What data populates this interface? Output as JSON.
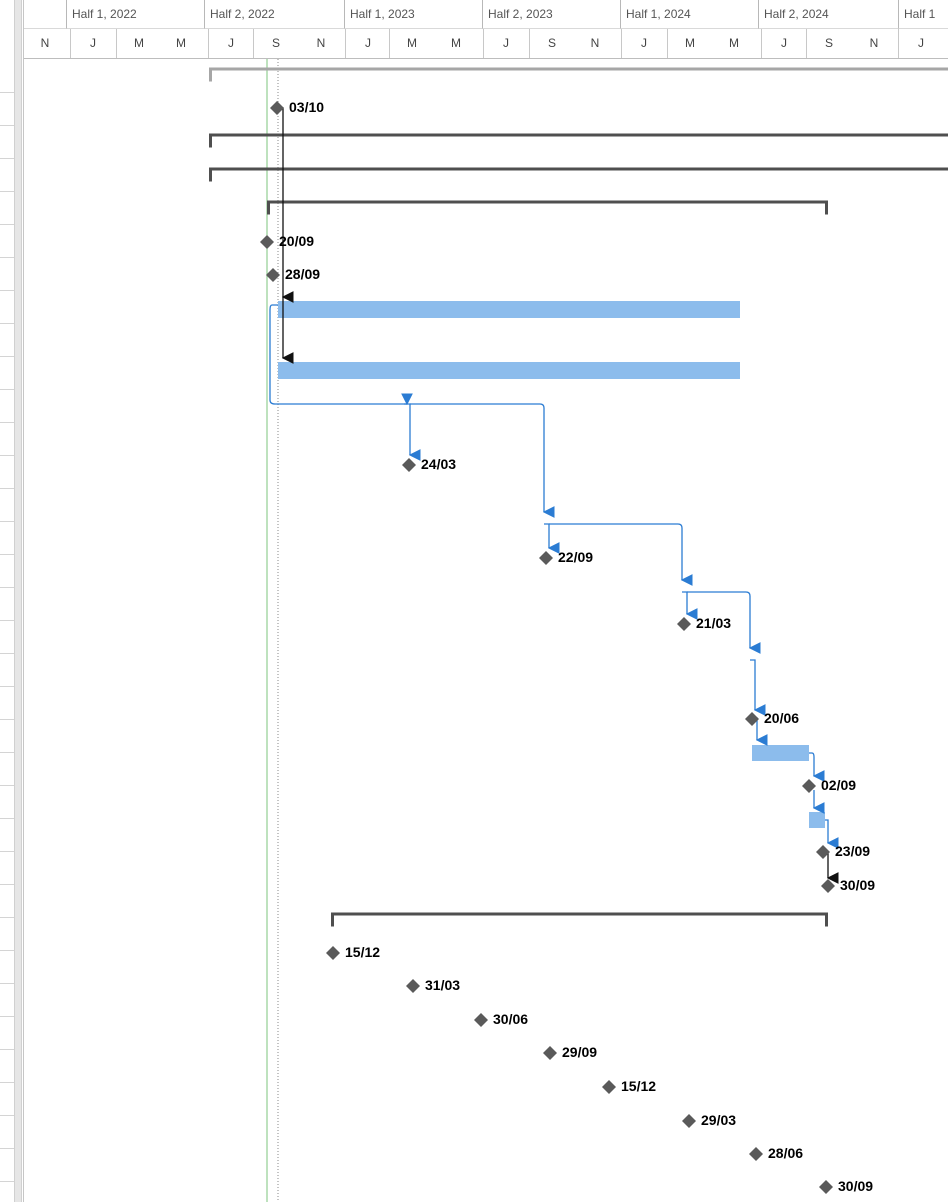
{
  "colors": {
    "task_bar": "#8cbcec",
    "milestone": "#5a5a5a",
    "summary": "#4f4f4f",
    "link_blue": "#2b7cd3",
    "link_black": "#111111",
    "current_date_line": "#7cc47c",
    "timescale_text": "#555555",
    "grid": "#d4d4d4"
  },
  "timescale": {
    "halves": [
      "Half 1, 2022",
      "Half 2, 2022",
      "Half 1, 2023",
      "Half 2, 2023",
      "Half 1, 2024",
      "Half 2, 2024",
      "Half 1"
    ],
    "months": [
      "N",
      "J",
      "M",
      "M",
      "J",
      "S",
      "N",
      "J",
      "M",
      "M",
      "J",
      "S",
      "N",
      "J",
      "M",
      "M",
      "J",
      "S",
      "N",
      "J"
    ]
  },
  "milestones": [
    {
      "date_label": "03/10"
    },
    {
      "date_label": "20/09"
    },
    {
      "date_label": "28/09"
    },
    {
      "date_label": "24/03"
    },
    {
      "date_label": "22/09"
    },
    {
      "date_label": "21/03"
    },
    {
      "date_label": "20/06"
    },
    {
      "date_label": "02/09"
    },
    {
      "date_label": "23/09"
    },
    {
      "date_label": "30/09"
    },
    {
      "date_label": "15/12"
    },
    {
      "date_label": "31/03"
    },
    {
      "date_label": "30/06"
    },
    {
      "date_label": "29/09"
    },
    {
      "date_label": "15/12"
    },
    {
      "date_label": "29/03"
    },
    {
      "date_label": "28/06"
    },
    {
      "date_label": "30/09"
    }
  ],
  "task_bars": [
    {
      "name": "bar-1"
    },
    {
      "name": "bar-2"
    },
    {
      "name": "bar-3"
    },
    {
      "name": "bar-4"
    }
  ],
  "summaries": [
    {
      "name": "summary-1"
    },
    {
      "name": "summary-2"
    },
    {
      "name": "summary-3"
    },
    {
      "name": "summary-4"
    },
    {
      "name": "summary-5"
    }
  ]
}
